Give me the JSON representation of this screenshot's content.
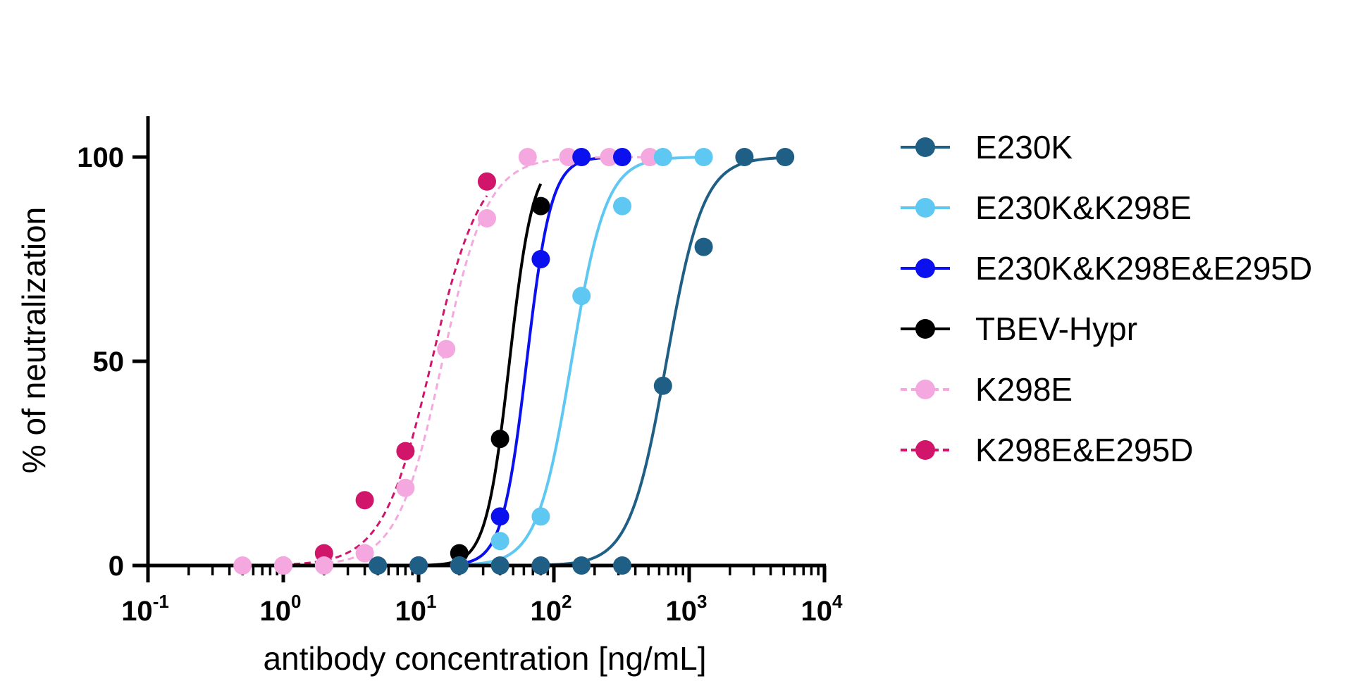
{
  "chart_data": {
    "type": "scatter",
    "title": "",
    "xlabel": "antibody concentration [ng/mL]",
    "ylabel": "% of neutralization",
    "xscale": "log",
    "xlim": [
      0.1,
      10000
    ],
    "ylim": [
      0,
      110
    ],
    "x_ticks": [
      {
        "base": "10",
        "exp": "-1"
      },
      {
        "base": "10",
        "exp": "0"
      },
      {
        "base": "10",
        "exp": "1"
      },
      {
        "base": "10",
        "exp": "2"
      },
      {
        "base": "10",
        "exp": "3"
      },
      {
        "base": "10",
        "exp": "4"
      }
    ],
    "x_tick_values": [
      0.1,
      1,
      10,
      100,
      1000,
      10000
    ],
    "y_ticks": [
      "0",
      "50",
      "100"
    ],
    "y_tick_values": [
      0,
      50,
      100
    ],
    "legend_position": "right",
    "series": [
      {
        "name": "E230K",
        "color": "#1f5f85",
        "line": "solid",
        "ec50": 680,
        "hill": 3.2,
        "x": [
          5,
          10,
          20,
          40,
          80,
          160,
          320,
          640,
          1280,
          2560,
          5120
        ],
        "y": [
          0,
          0,
          0,
          0,
          0,
          0,
          0,
          44,
          78,
          100,
          100
        ]
      },
      {
        "name": "E230K&K298E",
        "color": "#5ec8f2",
        "line": "solid",
        "ec50": 135,
        "hill": 3.4,
        "x": [
          20,
          40,
          80,
          160,
          320,
          640,
          1280
        ],
        "y": [
          0,
          6,
          12,
          66,
          88,
          100,
          100
        ]
      },
      {
        "name": "E230K&K298E&E295D",
        "color": "#0a10ee",
        "line": "solid",
        "ec50": 63,
        "hill": 4.8,
        "x": [
          10,
          20,
          40,
          80,
          160,
          320
        ],
        "y": [
          0,
          0,
          12,
          75,
          100,
          100
        ]
      },
      {
        "name": "TBEV-Hypr",
        "color": "#000000",
        "line": "solid",
        "ec50": 47,
        "hill": 5.0,
        "x": [
          10,
          20,
          40,
          80
        ],
        "y": [
          0,
          3,
          31,
          88
        ]
      },
      {
        "name": "K298E",
        "color": "#f4a8df",
        "line": "dashed",
        "ec50": 15,
        "hill": 2.6,
        "x": [
          0.5,
          1,
          2,
          4,
          8,
          16,
          32,
          64,
          128,
          256,
          512
        ],
        "y": [
          0,
          0,
          0,
          3,
          19,
          53,
          85,
          100,
          100,
          100,
          100
        ]
      },
      {
        "name": "K298E&E295D",
        "color": "#d0156b",
        "line": "dashed",
        "ec50": 12.5,
        "hill": 2.4,
        "x": [
          1,
          2,
          4,
          8,
          32
        ],
        "y": [
          0,
          3,
          16,
          28,
          94
        ]
      }
    ]
  }
}
